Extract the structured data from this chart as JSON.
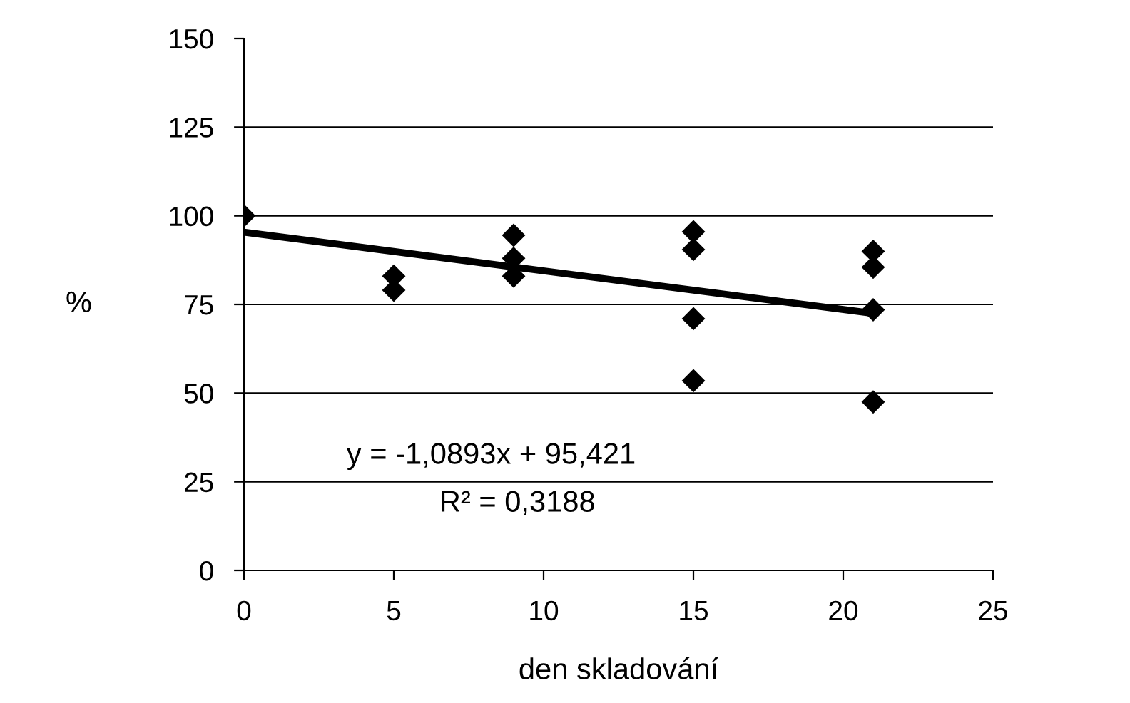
{
  "chart_data": {
    "type": "scatter",
    "xlabel": "den skladování",
    "ylabel": "%",
    "series": [
      {
        "color": "#000000",
        "marker": "diamond",
        "x": [
          0,
          5,
          5,
          9,
          9,
          9,
          15,
          15,
          15,
          15,
          21,
          21,
          21,
          21
        ],
        "values": [
          100,
          83,
          79,
          94.5,
          88,
          83,
          95.5,
          90.5,
          71,
          53.5,
          90,
          85.5,
          73.5,
          47.5
        ]
      },
      {
        "type": "line",
        "color": "#000000",
        "marker": "none",
        "x": [
          0,
          21
        ],
        "values": [
          95.4,
          72.5
        ]
      }
    ],
    "annotations": [
      "y = -1,0893x + 95,421",
      "R² = 0,3188"
    ],
    "xlim": [
      0,
      25
    ],
    "xticks": [
      0,
      5,
      10,
      15,
      20,
      25
    ],
    "ylim": [
      0,
      150
    ],
    "yticks": [
      0,
      25,
      50,
      75,
      100,
      125,
      150
    ],
    "grid": "y",
    "legend": false
  }
}
